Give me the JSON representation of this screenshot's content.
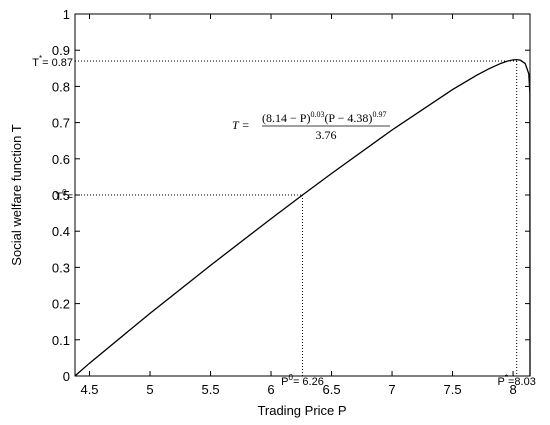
{
  "chart_data": {
    "type": "line",
    "x_label": "Trading Price P",
    "y_label": "Social welfare function T",
    "xlim": [
      4.38,
      8.14
    ],
    "ylim": [
      0,
      1
    ],
    "xticks": [
      4.5,
      5,
      5.5,
      6,
      6.5,
      7,
      7.5,
      8
    ],
    "yticks": [
      0,
      0.1,
      0.2,
      0.3,
      0.4,
      0.5,
      0.6,
      0.7,
      0.8,
      0.9,
      1
    ],
    "x": [
      4.38,
      4.4,
      4.5,
      5,
      5.5,
      6,
      6.26,
      6.5,
      7,
      7.5,
      7.7,
      7.8,
      7.9,
      7.95,
      8,
      8.03,
      8.06,
      8.1,
      8.13,
      8.139,
      8.14
    ],
    "series": [
      {
        "color": "#000000",
        "values": [
          0,
          0.0062,
          0.0354,
          0.1731,
          0.3057,
          0.4345,
          0.5,
          0.5595,
          0.6796,
          0.7913,
          0.8311,
          0.8486,
          0.8637,
          0.8696,
          0.8733,
          0.8739,
          0.8725,
          0.8635,
          0.8348,
          0.781,
          0
        ]
      }
    ],
    "reference_points": [
      {
        "x": 8.03,
        "y": 0.87,
        "y_label": {
          "base": "T",
          "sup": "*",
          "text": "= 0.87"
        },
        "x_label": {
          "base": "P",
          "sup": "*",
          "text": "=8.03"
        }
      },
      {
        "x": 6.26,
        "y": 0.5,
        "y_label": {
          "base": "T",
          "sup": "0",
          "text": "="
        },
        "x_label": {
          "base": "P",
          "sup": "0",
          "text": "= 6.26"
        }
      }
    ],
    "formula": {
      "lhs": "T =",
      "term1": "(8.14 − P)",
      "exp1": "0.03",
      "term2": "(P − 4.38)",
      "exp2": "0.97",
      "denominator": "3.76"
    }
  }
}
